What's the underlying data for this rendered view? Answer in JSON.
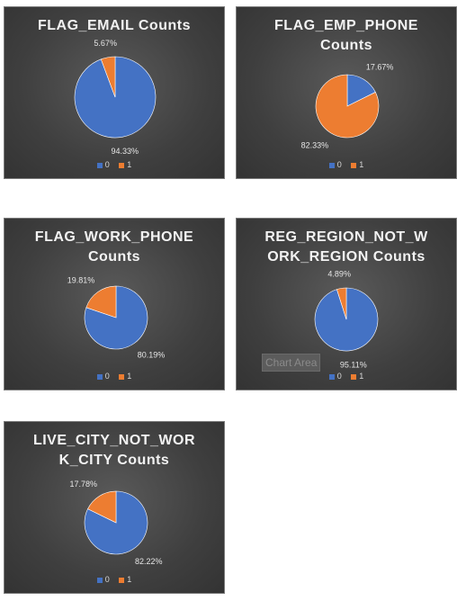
{
  "colors": {
    "series0": "#4472c4",
    "series1": "#ed7d31"
  },
  "legend_labels": [
    "0",
    "1"
  ],
  "tooltip": "Chart Area",
  "chart_data": [
    {
      "type": "pie",
      "title": "FLAG_EMAIL Counts",
      "categories": [
        "0",
        "1"
      ],
      "values": [
        94.33,
        5.67
      ],
      "labels": [
        "94.33%",
        "5.67%"
      ],
      "legend": "bottom"
    },
    {
      "type": "pie",
      "title": "FLAG_EMP_PHONE\nCounts",
      "categories": [
        "0",
        "1"
      ],
      "values": [
        17.67,
        82.33
      ],
      "labels": [
        "17.67%",
        "82.33%"
      ],
      "legend": "bottom"
    },
    {
      "type": "pie",
      "title": "FLAG_WORK_PHONE\nCounts",
      "categories": [
        "0",
        "1"
      ],
      "values": [
        80.19,
        19.81
      ],
      "labels": [
        "80.19%",
        "19.81%"
      ],
      "legend": "bottom"
    },
    {
      "type": "pie",
      "title": "REG_REGION_NOT_W\nORK_REGION Counts",
      "categories": [
        "0",
        "1"
      ],
      "values": [
        95.11,
        4.89
      ],
      "labels": [
        "95.11%",
        "4.89%"
      ],
      "legend": "bottom"
    },
    {
      "type": "pie",
      "title": "LIVE_CITY_NOT_WOR\nK_CITY Counts",
      "categories": [
        "0",
        "1"
      ],
      "values": [
        82.22,
        17.78
      ],
      "labels": [
        "82.22%",
        "17.78%"
      ],
      "legend": "bottom"
    }
  ]
}
